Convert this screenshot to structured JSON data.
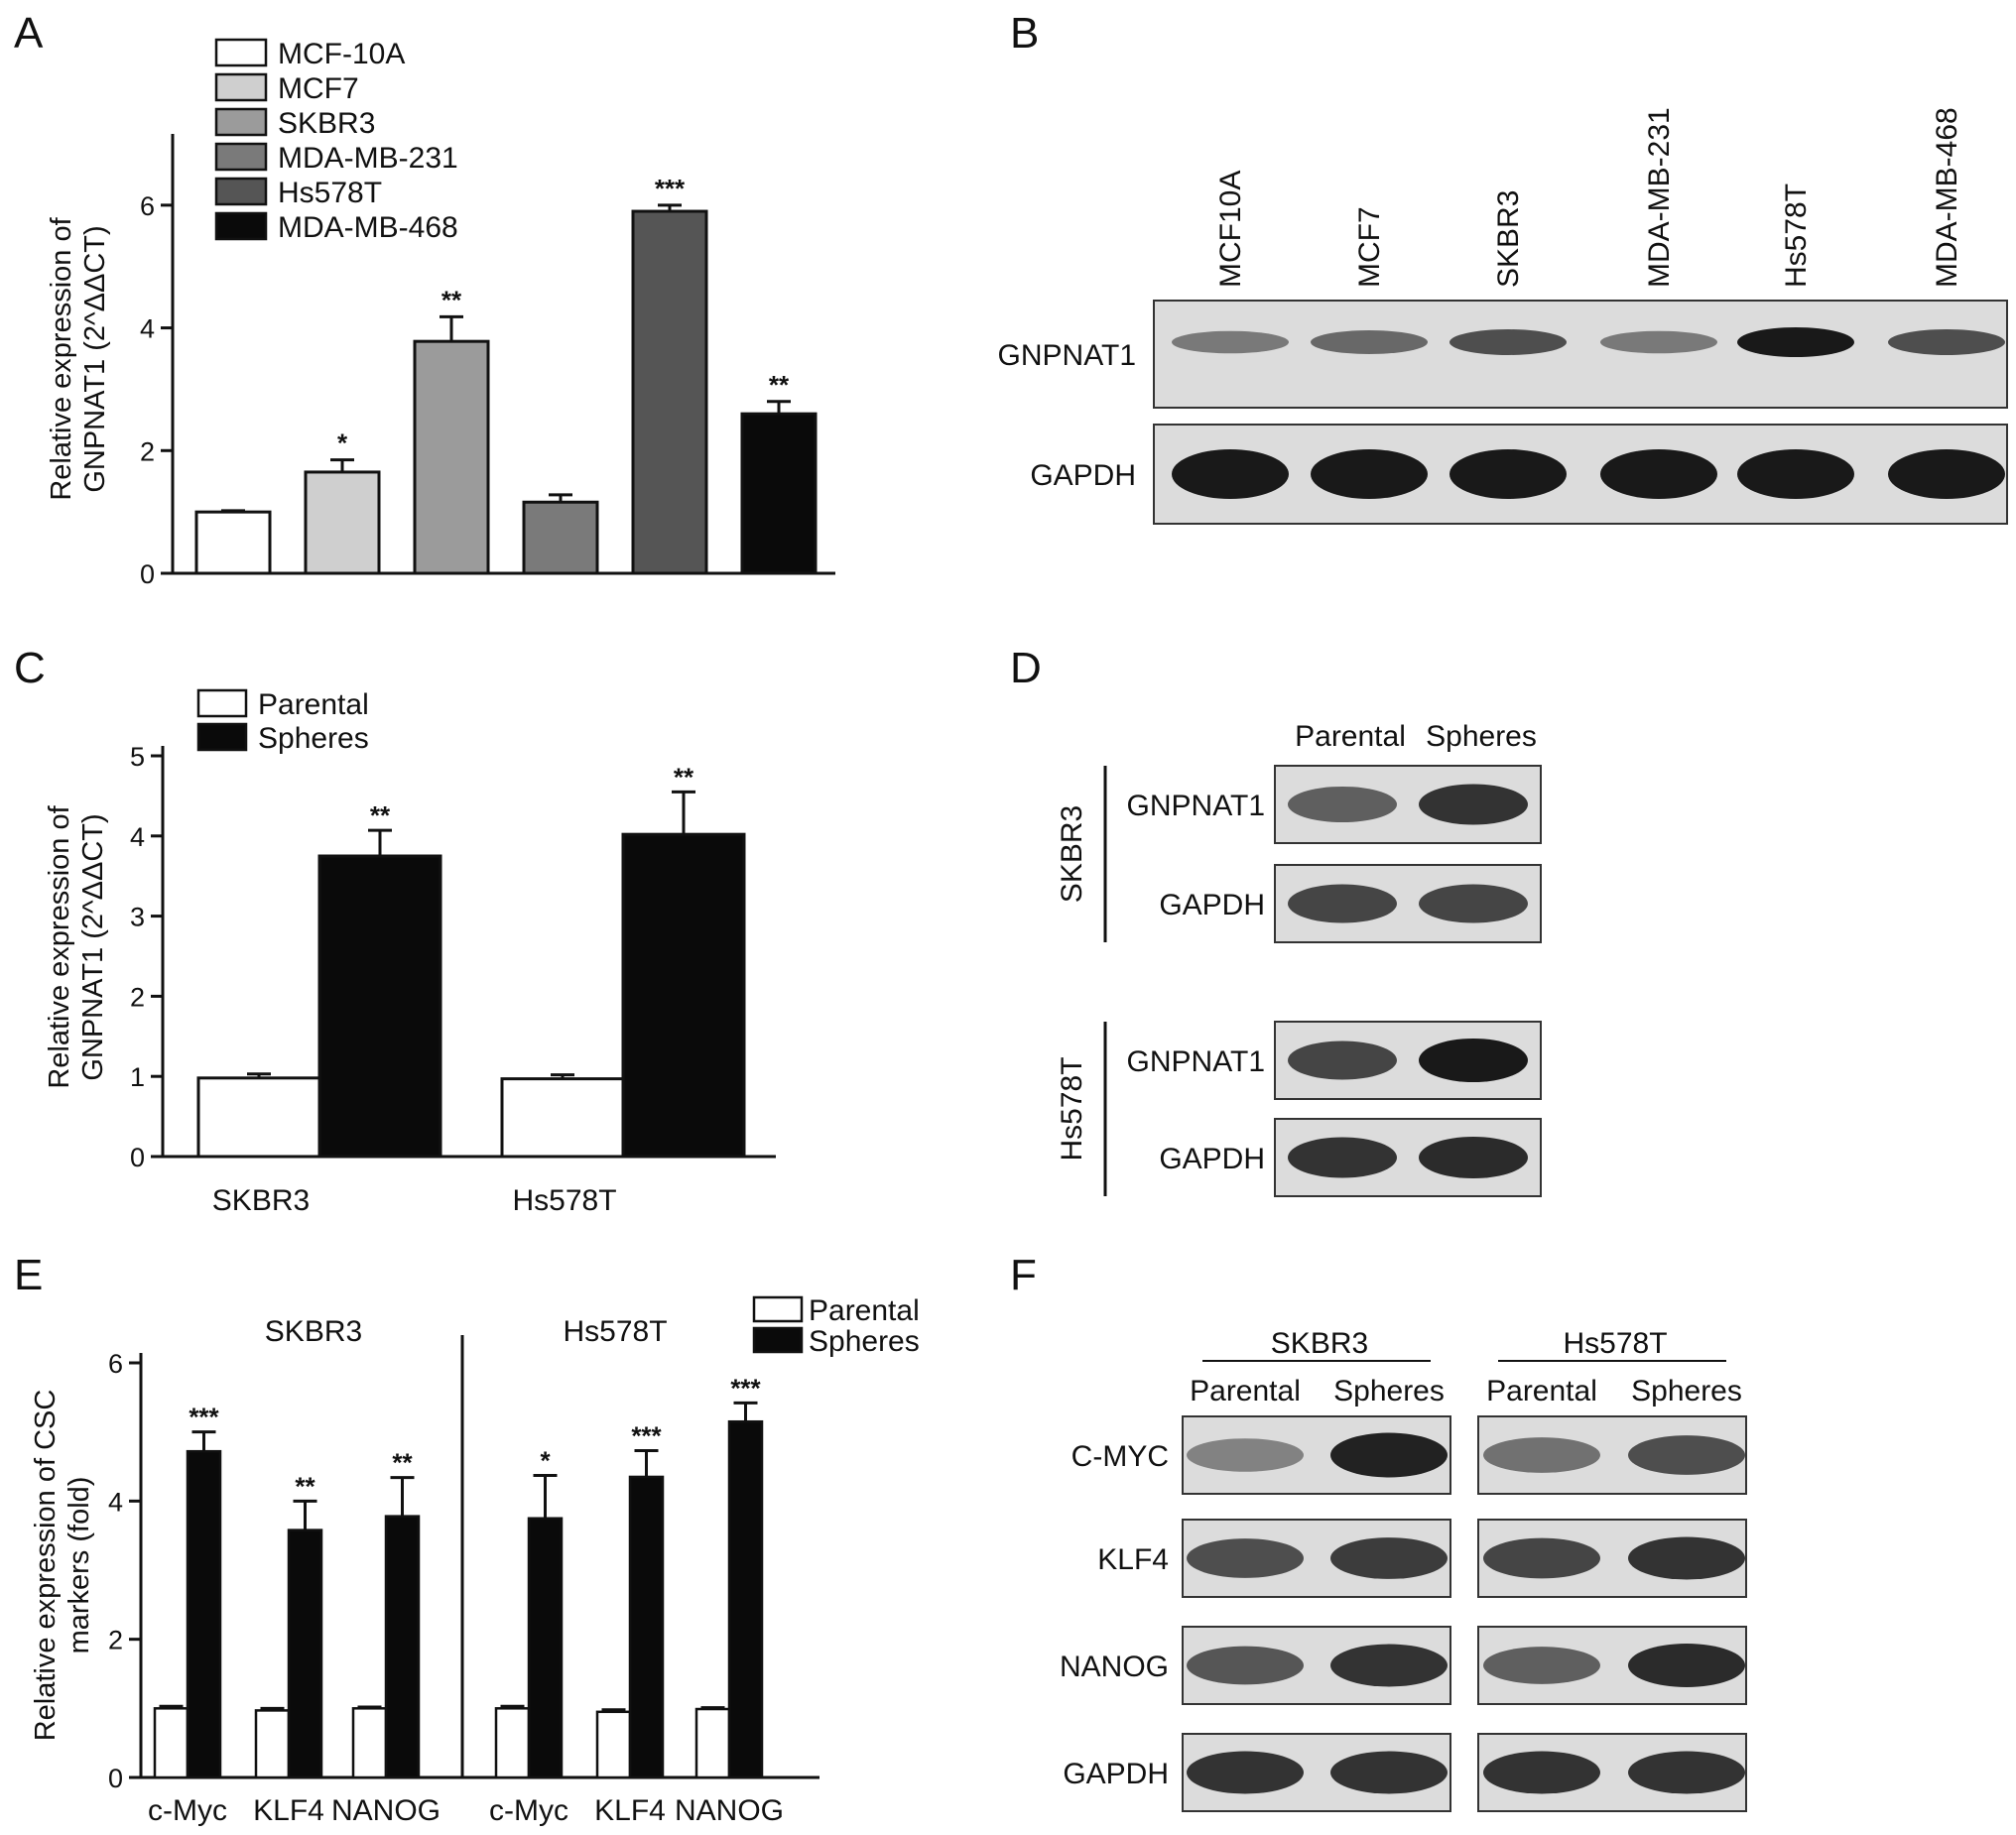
{
  "panel_letters": [
    "A",
    "B",
    "C",
    "D",
    "E",
    "F"
  ],
  "colors": {
    "MCF-10A": "#ffffff",
    "MCF7": "#cfcfcf",
    "SKBR3": "#9b9b9b",
    "MDA-MB-231": "#7a7a7a",
    "Hs578T": "#555555",
    "MDA-MB-468": "#0a0a0a",
    "Parental": "#ffffff",
    "Spheres": "#0a0a0a",
    "blot_bg": "#dcdcdc",
    "band": "#1a1a1a"
  },
  "chart_data": [
    {
      "panel": "A",
      "type": "bar",
      "ylabel_lines": [
        "Relative expression of",
        "GNPNAT1 (2^ΔΔCT)"
      ],
      "ylim": [
        0,
        7
      ],
      "yticks": [
        0,
        2,
        4,
        6
      ],
      "categories": [
        "MCF-10A",
        "MCF7",
        "SKBR3",
        "MDA-MB-231",
        "Hs578T",
        "MDA-MB-468"
      ],
      "values": [
        1.0,
        1.65,
        3.78,
        1.16,
        5.9,
        2.6
      ],
      "errors": [
        0.02,
        0.2,
        0.4,
        0.12,
        0.1,
        0.2
      ],
      "significance": [
        "",
        "*",
        "**",
        "",
        "***",
        "**"
      ],
      "legend": [
        "MCF-10A",
        "MCF7",
        "SKBR3",
        "MDA-MB-231",
        "Hs578T",
        "MDA-MB-468"
      ]
    },
    {
      "panel": "C",
      "type": "bar",
      "ylabel_lines": [
        "Relative expression of",
        "GNPNAT1 (2^ΔΔCT)"
      ],
      "ylim": [
        0,
        5
      ],
      "yticks": [
        0,
        1,
        2,
        3,
        4,
        5
      ],
      "categories": [
        "SKBR3",
        "Hs578T"
      ],
      "series": [
        {
          "name": "Parental",
          "values": [
            0.98,
            0.97
          ],
          "errors": [
            0.05,
            0.05
          ],
          "significance": [
            "",
            ""
          ]
        },
        {
          "name": "Spheres",
          "values": [
            3.75,
            4.02
          ],
          "errors": [
            0.32,
            0.53
          ],
          "significance": [
            "**",
            "**"
          ]
        }
      ]
    },
    {
      "panel": "E",
      "type": "bar",
      "ylabel_lines": [
        "Relative expression of CSC",
        "markers (fold)"
      ],
      "ylim": [
        0,
        6
      ],
      "yticks": [
        0,
        2,
        4,
        6
      ],
      "groups": [
        {
          "title": "SKBR3",
          "categories": [
            "c-Myc",
            "KLF4",
            "NANOG"
          ],
          "series": [
            {
              "name": "Parental",
              "values": [
                1.0,
                0.97,
                1.0
              ],
              "errors": [
                0.03,
                0.03,
                0.02
              ],
              "significance": [
                "",
                "",
                ""
              ]
            },
            {
              "name": "Spheres",
              "values": [
                4.72,
                3.58,
                3.78
              ],
              "errors": [
                0.28,
                0.42,
                0.56
              ],
              "significance": [
                "***",
                "**",
                "**"
              ]
            }
          ]
        },
        {
          "title": "Hs578T",
          "categories": [
            "c-Myc",
            "KLF4",
            "NANOG"
          ],
          "series": [
            {
              "name": "Parental",
              "values": [
                1.0,
                0.95,
                0.99
              ],
              "errors": [
                0.03,
                0.03,
                0.02
              ],
              "significance": [
                "",
                "",
                ""
              ]
            },
            {
              "name": "Spheres",
              "values": [
                3.75,
                4.35,
                5.15
              ],
              "errors": [
                0.62,
                0.38,
                0.27
              ],
              "significance": [
                "*",
                "***",
                "***"
              ]
            }
          ]
        }
      ],
      "legend": [
        "Parental",
        "Spheres"
      ]
    }
  ],
  "blots": {
    "B": {
      "lanes": [
        "MCF10A",
        "MCF7",
        "SKBR3",
        "MDA-MB-231",
        "Hs578T",
        "MDA-MB-468"
      ],
      "rows": [
        {
          "label": "GNPNAT1",
          "intensity": [
            0.45,
            0.55,
            0.7,
            0.45,
            1.0,
            0.7
          ]
        },
        {
          "label": "GAPDH",
          "intensity": [
            1.0,
            1.0,
            1.0,
            1.0,
            1.0,
            1.0
          ]
        }
      ]
    },
    "D": {
      "lanes": [
        "Parental",
        "Spheres"
      ],
      "groups": [
        {
          "name": "SKBR3",
          "rows": [
            {
              "label": "GNPNAT1",
              "intensity": [
                0.6,
                0.85
              ]
            },
            {
              "label": "GAPDH",
              "intensity": [
                0.75,
                0.75
              ]
            }
          ]
        },
        {
          "name": "Hs578T",
          "rows": [
            {
              "label": "GNPNAT1",
              "intensity": [
                0.75,
                1.0
              ]
            },
            {
              "label": "GAPDH",
              "intensity": [
                0.85,
                0.9
              ]
            }
          ]
        }
      ]
    },
    "F": {
      "groups": [
        {
          "name": "SKBR3",
          "lanes": [
            "Parental",
            "Spheres"
          ]
        },
        {
          "name": "Hs578T",
          "lanes": [
            "Parental",
            "Spheres"
          ]
        }
      ],
      "rows": [
        {
          "label": "C-MYC",
          "intensity": [
            0.4,
            0.95,
            0.5,
            0.7
          ]
        },
        {
          "label": "KLF4",
          "intensity": [
            0.7,
            0.8,
            0.75,
            0.85
          ]
        },
        {
          "label": "NANOG",
          "intensity": [
            0.65,
            0.85,
            0.6,
            0.9
          ]
        },
        {
          "label": "GAPDH",
          "intensity": [
            0.85,
            0.85,
            0.85,
            0.85
          ]
        }
      ]
    }
  }
}
